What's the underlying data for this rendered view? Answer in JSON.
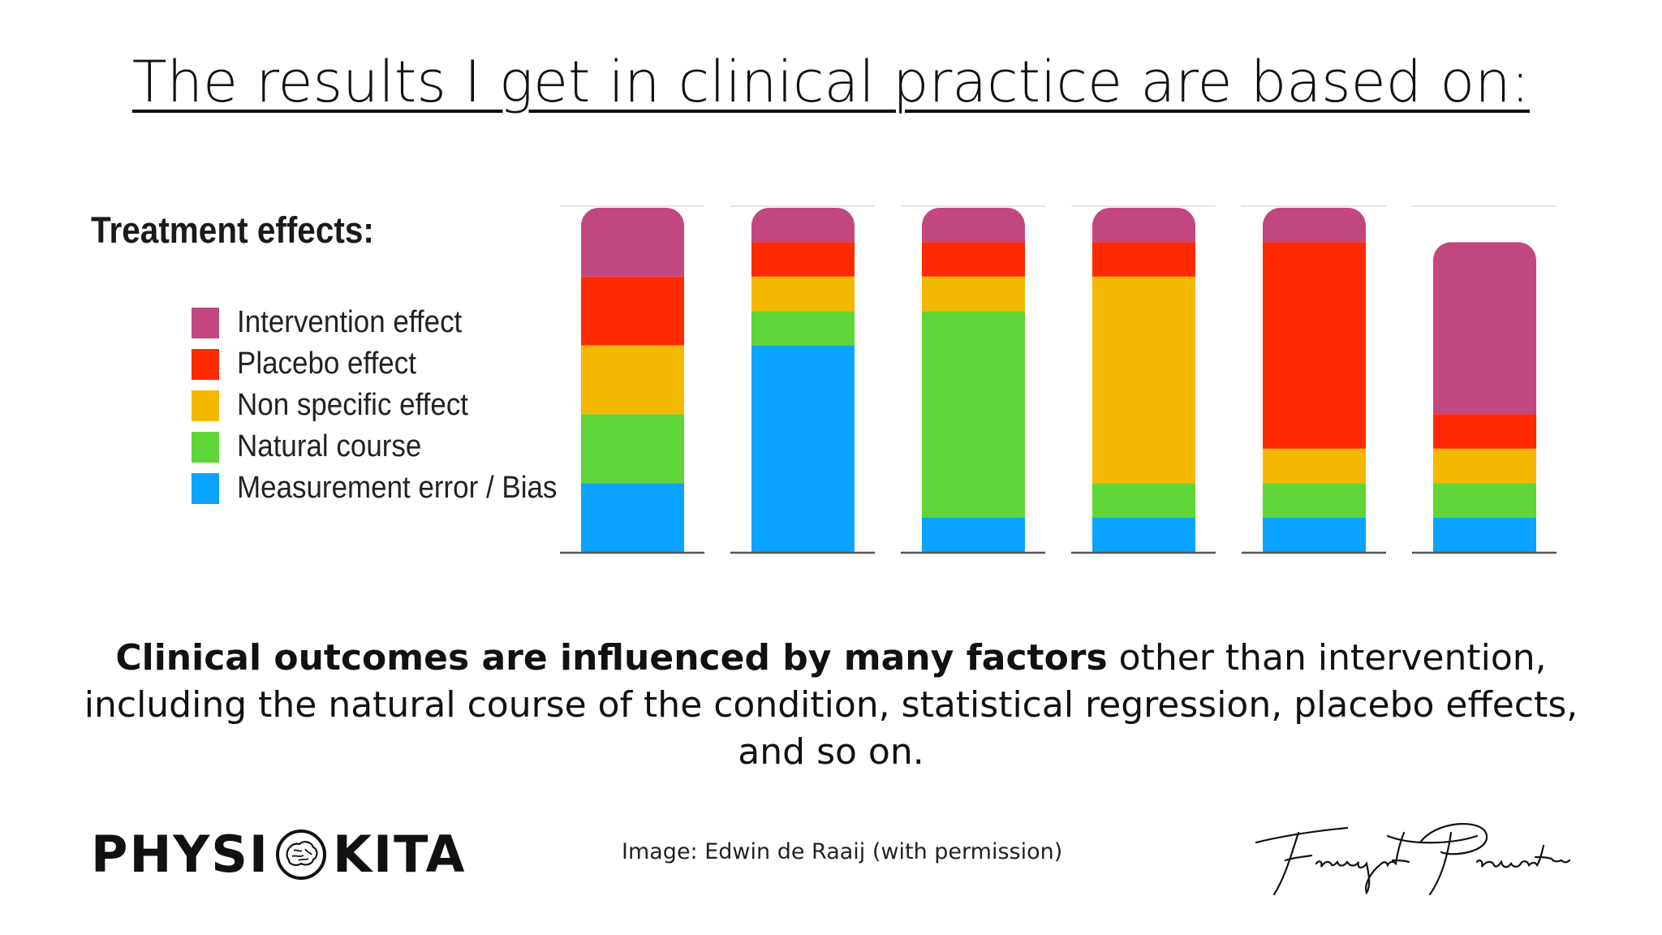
{
  "title": "The results I get in clinical practice are based on:",
  "legend": {
    "title": "Treatment effects:",
    "items": [
      {
        "label": "Intervention effect",
        "color": "#c2477f"
      },
      {
        "label": "Placebo effect",
        "color": "#ff2a00"
      },
      {
        "label": "Non specific effect",
        "color": "#f5b800"
      },
      {
        "label": "Natural course",
        "color": "#5fd637"
      },
      {
        "label": "Measurement error / Bias",
        "color": "#0aa3ff"
      }
    ]
  },
  "chart_data": {
    "type": "bar",
    "stacked": true,
    "categories": [
      "",
      "",
      "",
      "",
      "",
      ""
    ],
    "ylim": [
      0,
      100
    ],
    "grid": false,
    "legend_position": "left",
    "series": [
      {
        "name": "Measurement error / Bias",
        "color": "#0aa3ff",
        "values": [
          20,
          60,
          10,
          10,
          10,
          10
        ]
      },
      {
        "name": "Natural course",
        "color": "#5fd637",
        "values": [
          20,
          10,
          60,
          10,
          10,
          10
        ]
      },
      {
        "name": "Non specific effect",
        "color": "#f5b800",
        "values": [
          20,
          10,
          10,
          60,
          10,
          10
        ]
      },
      {
        "name": "Placebo effect",
        "color": "#ff2a00",
        "values": [
          20,
          10,
          10,
          10,
          60,
          10
        ]
      },
      {
        "name": "Intervention effect",
        "color": "#c2477f",
        "values": [
          20,
          10,
          10,
          10,
          10,
          50
        ]
      }
    ]
  },
  "caption": {
    "bold": "Clinical outcomes are influenced by many factors",
    "rest_line1": " other than intervention,",
    "line2": "including the natural course of the condition, statistical regression, placebo effects,",
    "line3": "and so on."
  },
  "footer": {
    "logo_left": "PHYSI",
    "logo_right": "KITA",
    "credit": "Image: Edwin de Raaij (with permission)",
    "signature": "Firmansyah Purwanto"
  }
}
